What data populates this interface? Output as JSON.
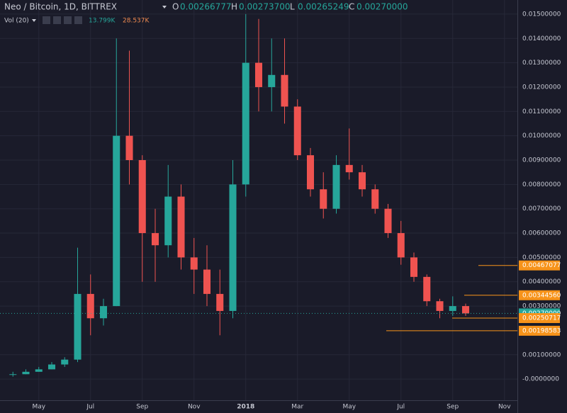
{
  "header": {
    "symbol": "Neo / Bitcoin, 1D, BITTREX",
    "ohlc": [
      {
        "key": "O",
        "value": "0.00266777"
      },
      {
        "key": "H",
        "value": "0.00273700"
      },
      {
        "key": "L",
        "value": "0.00265249"
      },
      {
        "key": "C",
        "value": "0.00270000"
      }
    ],
    "volume": {
      "label": "Vol (20)",
      "values": [
        "13.799K",
        "28.537K"
      ]
    }
  },
  "chart_data": {
    "type": "candlestick",
    "up_color": "#26a69a",
    "down_color": "#ef5350",
    "open": [
      0.0002,
      0.0002,
      0.0003,
      0.0004,
      0.0006,
      0.0008,
      0.0035,
      0.0025,
      0.003,
      0.01,
      0.009,
      0.006,
      0.0055,
      0.0075,
      0.005,
      0.0045,
      0.0035,
      0.0028,
      0.008,
      0.013,
      0.012,
      0.0125,
      0.0112,
      0.0092,
      0.0078,
      0.007,
      0.0088,
      0.0085,
      0.0078,
      0.007,
      0.006,
      0.005,
      0.0042,
      0.0032,
      0.0028,
      0.003
    ],
    "high": [
      0.0003,
      0.0004,
      0.0005,
      0.0007,
      0.0009,
      0.0054,
      0.0043,
      0.0033,
      0.014,
      0.0135,
      0.0092,
      0.007,
      0.0088,
      0.008,
      0.0058,
      0.0055,
      0.0045,
      0.009,
      0.015,
      0.0148,
      0.014,
      0.014,
      0.0115,
      0.0095,
      0.0085,
      0.0092,
      0.0103,
      0.0088,
      0.008,
      0.0072,
      0.0065,
      0.0052,
      0.0043,
      0.0033,
      0.0034,
      0.0031
    ],
    "low": [
      0.0001,
      0.0002,
      0.0003,
      0.0004,
      0.0005,
      0.0007,
      0.0018,
      0.0022,
      0.003,
      0.008,
      0.004,
      0.004,
      0.005,
      0.0045,
      0.0035,
      0.003,
      0.0018,
      0.0025,
      0.0075,
      0.011,
      0.011,
      0.0105,
      0.009,
      0.0075,
      0.0066,
      0.0068,
      0.0082,
      0.0075,
      0.0068,
      0.0058,
      0.0047,
      0.004,
      0.003,
      0.0025,
      0.0026,
      0.0026
    ],
    "close": [
      0.0002,
      0.0003,
      0.0004,
      0.0006,
      0.0008,
      0.0035,
      0.0025,
      0.003,
      0.01,
      0.009,
      0.006,
      0.0055,
      0.0075,
      0.005,
      0.0045,
      0.0035,
      0.0028,
      0.008,
      0.013,
      0.012,
      0.0125,
      0.0112,
      0.0092,
      0.0078,
      0.007,
      0.0088,
      0.0085,
      0.0078,
      0.007,
      0.006,
      0.005,
      0.0042,
      0.0032,
      0.0028,
      0.003,
      0.0027
    ],
    "xlim": [
      -1,
      39
    ],
    "xticks": [
      {
        "value": 2,
        "label": "May"
      },
      {
        "value": 6,
        "label": "Jul"
      },
      {
        "value": 10,
        "label": "Sep"
      },
      {
        "value": 14,
        "label": "Nov"
      },
      {
        "value": 18,
        "label": "2018"
      },
      {
        "value": 22,
        "label": "Mar"
      },
      {
        "value": 26,
        "label": "May"
      },
      {
        "value": 30,
        "label": "Jul"
      },
      {
        "value": 34,
        "label": "Sep"
      },
      {
        "value": 38,
        "label": "Nov"
      }
    ],
    "ylim": [
      -0.00087,
      0.01558
    ],
    "yticks": [
      {
        "value": 0.015,
        "label": "0.01500000"
      },
      {
        "value": 0.014,
        "label": "0.01400000"
      },
      {
        "value": 0.013,
        "label": "0.01300000"
      },
      {
        "value": 0.012,
        "label": "0.01200000"
      },
      {
        "value": 0.011,
        "label": "0.01100000"
      },
      {
        "value": 0.01,
        "label": "0.01000000"
      },
      {
        "value": 0.009,
        "label": "0.00900000"
      },
      {
        "value": 0.008,
        "label": "0.00800000"
      },
      {
        "value": 0.007,
        "label": "0.00700000"
      },
      {
        "value": 0.006,
        "label": "0.00600000"
      },
      {
        "value": 0.005,
        "label": "0.00500000"
      },
      {
        "value": 0.004,
        "label": "0.00400000"
      },
      {
        "value": 0.003,
        "label": "0.00300000"
      },
      {
        "value": 0.001,
        "label": "0.00100000"
      },
      {
        "value": 0,
        "label": "-0.0000000"
      }
    ],
    "price_lines": [
      {
        "value": 0.00467077,
        "label": "0.00467077",
        "color": "#f7931a"
      },
      {
        "value": 0.0034456,
        "label": "0.00344560",
        "color": "#f7931a"
      },
      {
        "value": 0.0027,
        "label": "0.00270000",
        "color": "#26a69a"
      },
      {
        "value": 0.00250717,
        "label": "0.00250717",
        "color": "#f7931a"
      },
      {
        "value": 0.00198583,
        "label": "0.00198583",
        "color": "#f7931a"
      }
    ],
    "grid": true
  }
}
